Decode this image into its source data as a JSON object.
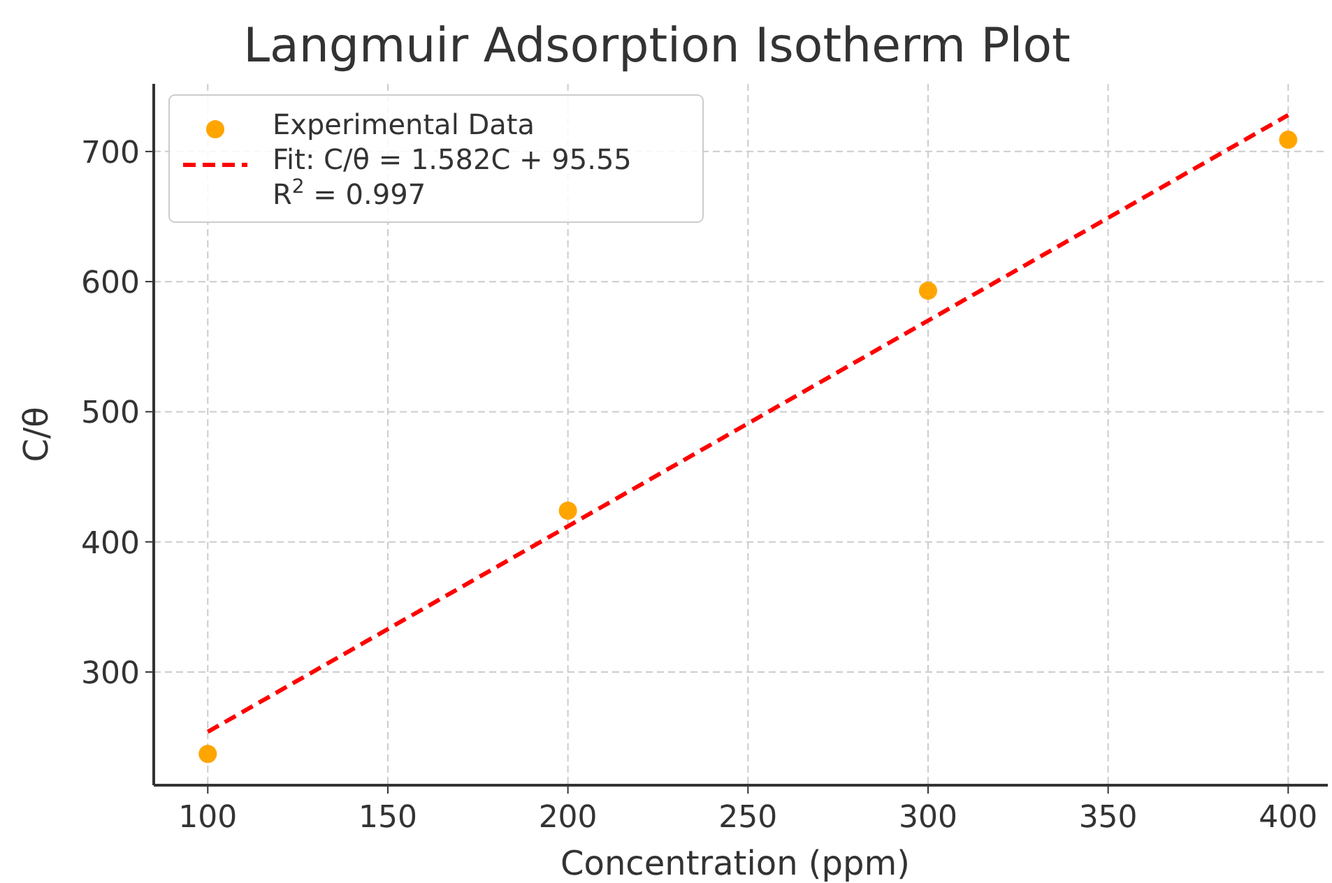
{
  "chart_data": {
    "type": "scatter",
    "title": "Langmuir Adsorption Isotherm Plot",
    "xlabel": "Concentration (ppm)",
    "ylabel": "C/θ",
    "xlim": [
      85,
      411
    ],
    "xticks": [
      100,
      150,
      200,
      250,
      300,
      350,
      400
    ],
    "ylim": [
      213,
      752
    ],
    "yticks": [
      300,
      400,
      500,
      600,
      700
    ],
    "grid": true,
    "legend": "top left",
    "series": [
      {
        "name": "Experimental Data",
        "marker": "circle",
        "color": "#ffa500",
        "x": [
          100,
          200,
          300,
          400
        ],
        "values": [
          237,
          424,
          593,
          709
        ]
      },
      {
        "name": "Fit: C/θ = 1.582C + 95.55\nR$^{2}$ = 0.997",
        "type": "line",
        "line_style": "dashed",
        "color": "#ff0000",
        "x": [
          100,
          400
        ],
        "values": [
          254,
          728
        ]
      }
    ]
  }
}
